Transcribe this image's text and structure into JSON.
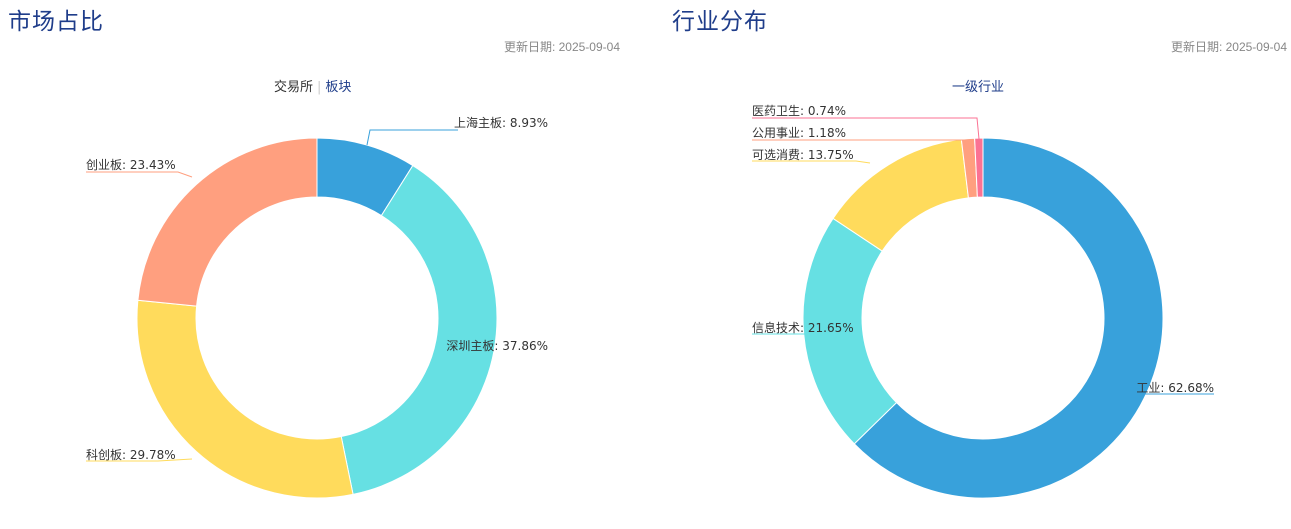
{
  "left": {
    "title": "市场占比",
    "update_label": "更新日期: 2025-09-04",
    "tabs": [
      {
        "label": "交易所"
      },
      {
        "label": "板块"
      }
    ],
    "separator": "|"
  },
  "right": {
    "title": "行业分布",
    "update_label": "更新日期: 2025-09-04",
    "tabs": [
      {
        "label": "一级行业"
      }
    ]
  },
  "chart_data": [
    {
      "type": "pie",
      "donut": true,
      "slices": [
        {
          "name": "上海主板",
          "value": 8.93,
          "label": "上海主板: 8.93%",
          "color": "#38a1db"
        },
        {
          "name": "深圳主板",
          "value": 37.86,
          "label": "深圳主板: 37.86%",
          "color": "#66e0e3"
        },
        {
          "name": "科创板",
          "value": 29.78,
          "label": "科创板: 29.78%",
          "color": "#ffdb5c"
        },
        {
          "name": "创业板",
          "value": 23.43,
          "label": "创业板: 23.43%",
          "color": "#ff9f7f"
        }
      ]
    },
    {
      "type": "pie",
      "donut": true,
      "slices": [
        {
          "name": "工业",
          "value": 62.68,
          "label": "工业: 62.68%",
          "color": "#38a1db"
        },
        {
          "name": "信息技术",
          "value": 21.65,
          "label": "信息技术: 21.65%",
          "color": "#66e0e3"
        },
        {
          "name": "可选消费",
          "value": 13.75,
          "label": "可选消费: 13.75%",
          "color": "#ffdb5c"
        },
        {
          "name": "公用事业",
          "value": 1.18,
          "label": "公用事业: 1.18%",
          "color": "#ff9f7f"
        },
        {
          "name": "医药卫生",
          "value": 0.74,
          "label": "医药卫生: 0.74%",
          "color": "#fb7293"
        }
      ]
    }
  ]
}
